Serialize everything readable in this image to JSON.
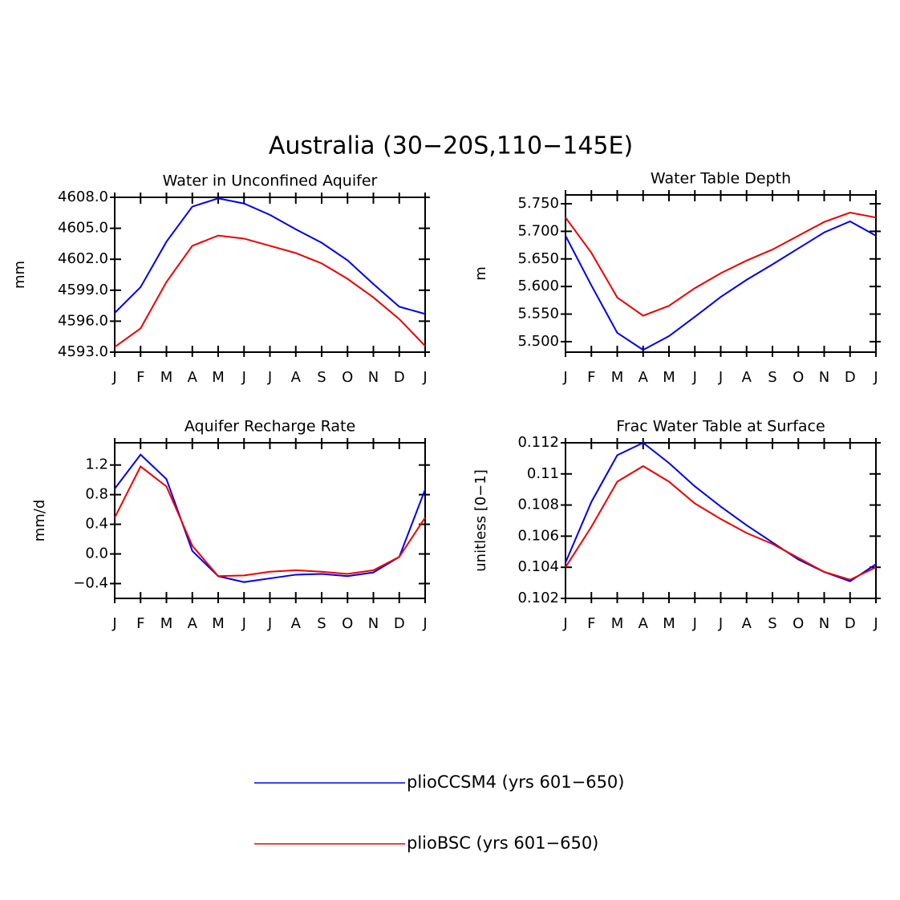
{
  "title": "Australia (30−20S,110−145E)",
  "chart_data": [
    {
      "type": "line",
      "title": "Water in Unconfined Aquifer",
      "ylabel": "mm",
      "categories": [
        "J",
        "F",
        "M",
        "A",
        "M",
        "J",
        "J",
        "A",
        "S",
        "O",
        "N",
        "D",
        "J"
      ],
      "series": [
        {
          "name": "plioCCSM4 (yrs 601−650)",
          "color": "#0000ee",
          "values": [
            4596.8,
            4599.3,
            4603.7,
            4607.1,
            4607.9,
            4607.4,
            4606.3,
            4604.9,
            4603.6,
            4601.9,
            4599.6,
            4597.4,
            4596.7
          ]
        },
        {
          "name": "plioBSC (yrs 601−650)",
          "color": "#ee0000",
          "values": [
            4593.5,
            4595.3,
            4599.8,
            4603.3,
            4604.3,
            4604.0,
            4603.3,
            4602.6,
            4601.6,
            4600.1,
            4598.3,
            4596.2,
            4593.6
          ]
        }
      ],
      "ylim": [
        4593,
        4608
      ],
      "yticks": [
        {
          "value": 4593,
          "label": "4593.0"
        },
        {
          "value": 4596,
          "label": "4596.0"
        },
        {
          "value": 4599,
          "label": "4599.0"
        },
        {
          "value": 4602,
          "label": "4602.0"
        },
        {
          "value": 4605,
          "label": "4605.0"
        },
        {
          "value": 4608,
          "label": "4608.0"
        }
      ]
    },
    {
      "type": "line",
      "title": "Water Table Depth",
      "ylabel": "m",
      "categories": [
        "J",
        "F",
        "M",
        "A",
        "M",
        "J",
        "J",
        "A",
        "S",
        "O",
        "N",
        "D",
        "J"
      ],
      "series": [
        {
          "name": "plioCCSM4 (yrs 601−650)",
          "color": "#0000ee",
          "values": [
            5.692,
            5.602,
            5.516,
            5.485,
            5.51,
            5.545,
            5.581,
            5.612,
            5.64,
            5.669,
            5.698,
            5.718,
            5.692
          ]
        },
        {
          "name": "plioBSC (yrs 601−650)",
          "color": "#ee0000",
          "values": [
            5.725,
            5.661,
            5.58,
            5.547,
            5.565,
            5.597,
            5.624,
            5.647,
            5.667,
            5.692,
            5.717,
            5.734,
            5.725
          ]
        }
      ],
      "ylim": [
        5.481,
        5.766
      ],
      "yticks": [
        {
          "value": 5.5,
          "label": "5.500"
        },
        {
          "value": 5.55,
          "label": "5.550"
        },
        {
          "value": 5.6,
          "label": "5.600"
        },
        {
          "value": 5.65,
          "label": "5.650"
        },
        {
          "value": 5.7,
          "label": "5.700"
        },
        {
          "value": 5.75,
          "label": "5.750"
        }
      ]
    },
    {
      "type": "line",
      "title": "Aquifer Recharge Rate",
      "ylabel": "mm/d",
      "categories": [
        "J",
        "F",
        "M",
        "A",
        "M",
        "J",
        "J",
        "A",
        "S",
        "O",
        "N",
        "D",
        "J"
      ],
      "series": [
        {
          "name": "plioCCSM4 (yrs 601−650)",
          "color": "#0000ee",
          "values": [
            0.88,
            1.34,
            1.01,
            0.04,
            -0.3,
            -0.38,
            -0.33,
            -0.28,
            -0.27,
            -0.3,
            -0.25,
            -0.04,
            0.87
          ]
        },
        {
          "name": "plioBSC (yrs 601−650)",
          "color": "#ee0000",
          "values": [
            0.49,
            1.18,
            0.91,
            0.11,
            -0.3,
            -0.29,
            -0.24,
            -0.22,
            -0.24,
            -0.27,
            -0.22,
            -0.04,
            0.49
          ]
        }
      ],
      "ylim": [
        -0.6,
        1.5
      ],
      "yticks": [
        {
          "value": -0.4,
          "label": "−0.4"
        },
        {
          "value": 0,
          "label": "0.0"
        },
        0.4,
        0.8,
        1.2
      ]
    },
    {
      "type": "line",
      "title": "Frac Water Table at Surface",
      "ylabel": "unitless [0−1]",
      "categories": [
        "J",
        "F",
        "M",
        "A",
        "M",
        "J",
        "J",
        "A",
        "S",
        "O",
        "N",
        "D",
        "J"
      ],
      "series": [
        {
          "name": "plioCCSM4 (yrs 601−650)",
          "color": "#0000ee",
          "values": [
            0.1043,
            0.1082,
            0.1112,
            0.112,
            0.1107,
            0.1092,
            0.1079,
            0.1067,
            0.1056,
            0.1045,
            0.1037,
            0.1031,
            0.1042
          ]
        },
        {
          "name": "plioBSC (yrs 601−650)",
          "color": "#ee0000",
          "values": [
            0.104,
            0.1066,
            0.1095,
            0.1105,
            0.1095,
            0.1081,
            0.1071,
            0.1062,
            0.1055,
            0.1046,
            0.1037,
            0.1032,
            0.104
          ]
        }
      ],
      "ylim": [
        0.102,
        0.112
      ],
      "yticks": [
        0.102,
        0.104,
        0.106,
        0.108,
        0.11,
        0.112
      ]
    }
  ]
}
